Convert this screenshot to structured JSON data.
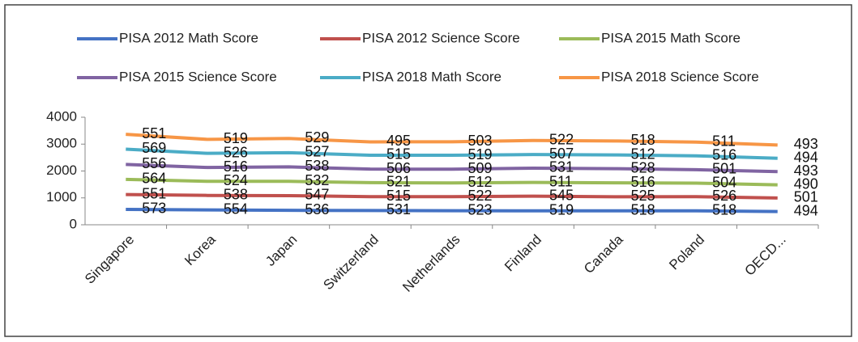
{
  "chart_data": {
    "type": "stacked_line",
    "categories": [
      "Singapore",
      "Korea",
      "Japan",
      "Switzerland",
      "Netherlands",
      "Finland",
      "Canada",
      "Poland",
      "OECD..."
    ],
    "series": [
      {
        "name": "PISA 2012 Math Score",
        "color": "#4472c4",
        "values": [
          573,
          554,
          536,
          531,
          523,
          519,
          518,
          518,
          494
        ]
      },
      {
        "name": "PISA 2012 Science Score",
        "color": "#c0504d",
        "values": [
          551,
          538,
          547,
          515,
          522,
          545,
          525,
          526,
          501
        ]
      },
      {
        "name": "PISA 2015 Math Score",
        "color": "#9bbb59",
        "values": [
          564,
          524,
          532,
          521,
          512,
          511,
          516,
          504,
          490
        ]
      },
      {
        "name": "PISA 2015 Science Score",
        "color": "#8064a2",
        "values": [
          556,
          516,
          538,
          506,
          509,
          531,
          528,
          501,
          493
        ]
      },
      {
        "name": "PISA 2018 Math Score",
        "color": "#4bacc6",
        "values": [
          569,
          526,
          527,
          515,
          519,
          507,
          512,
          516,
          494
        ]
      },
      {
        "name": "PISA 2018 Science Score",
        "color": "#f79646",
        "values": [
          551,
          519,
          529,
          495,
          503,
          522,
          518,
          511,
          493
        ]
      }
    ],
    "ylim": [
      0,
      4000
    ],
    "yticks": [
      0,
      1000,
      2000,
      3000,
      4000
    ],
    "grid": false,
    "legend": "top"
  }
}
